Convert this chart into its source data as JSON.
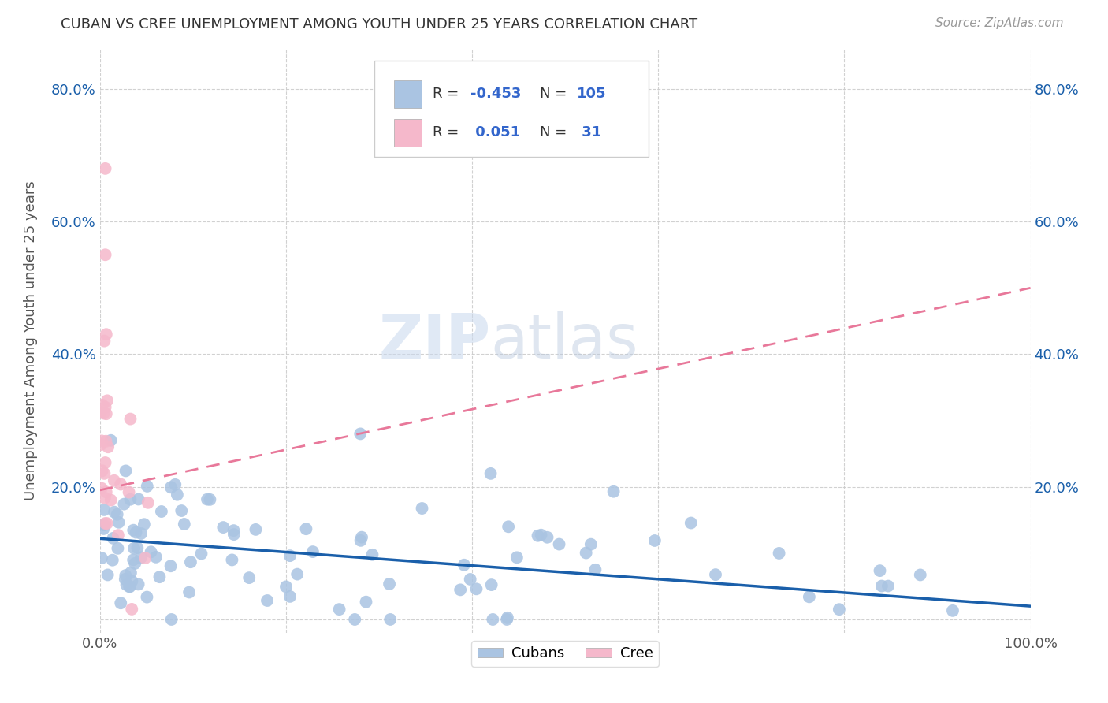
{
  "title": "CUBAN VS CREE UNEMPLOYMENT AMONG YOUTH UNDER 25 YEARS CORRELATION CHART",
  "source": "Source: ZipAtlas.com",
  "ylabel": "Unemployment Among Youth under 25 years",
  "xlim": [
    0.0,
    1.0
  ],
  "ylim": [
    -0.02,
    0.86
  ],
  "cubans_color": "#aac4e2",
  "cree_color": "#f5b8cb",
  "cubans_line_color": "#1a5faa",
  "cree_line_color": "#e8789a",
  "cubans_R": -0.453,
  "cubans_N": 105,
  "cree_R": 0.051,
  "cree_N": 31,
  "legend_R_color": "#3366cc",
  "background_color": "#ffffff",
  "grid_color": "#cccccc",
  "watermark_zip": "ZIP",
  "watermark_atlas": "atlas",
  "cubans_line_x0": 0.0,
  "cubans_line_y0": 0.122,
  "cubans_line_x1": 1.0,
  "cubans_line_y1": 0.02,
  "cree_line_x0": 0.0,
  "cree_line_y0": 0.195,
  "cree_line_x1": 1.0,
  "cree_line_y1": 0.5
}
